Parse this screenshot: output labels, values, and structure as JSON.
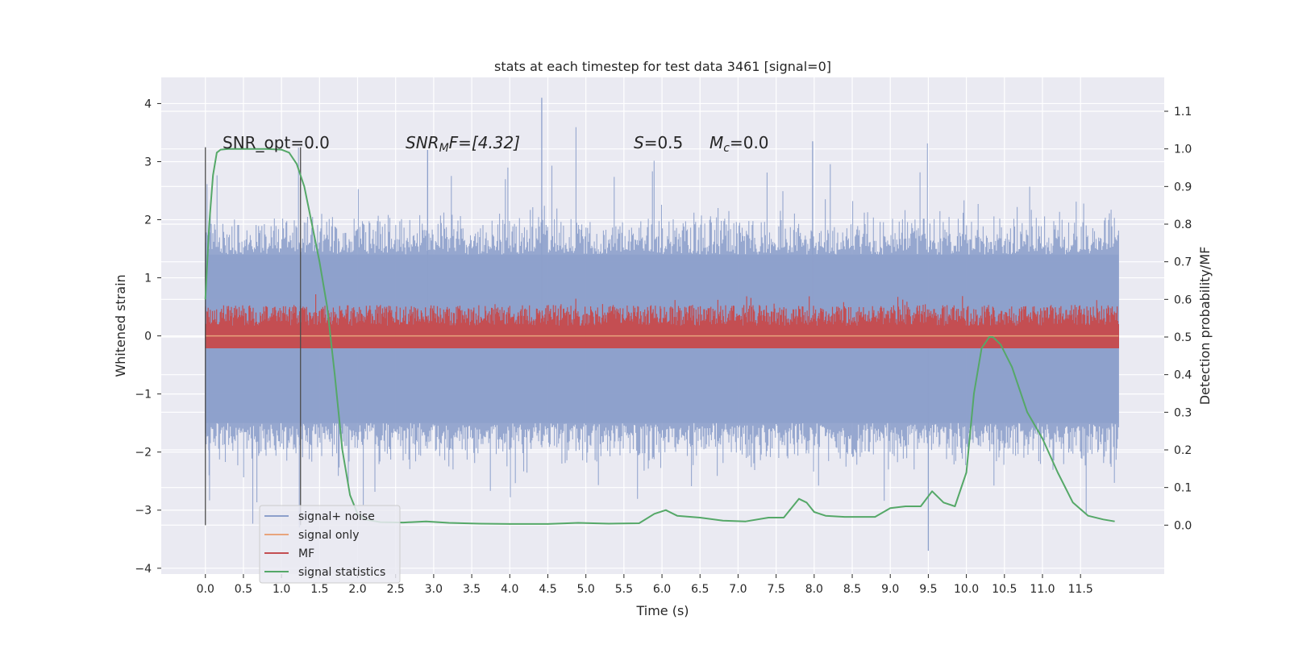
{
  "chart_data": {
    "type": "line",
    "title": "stats at each timestep for test data 3461 [signal=0]",
    "xlabel": "Time (s)",
    "ylabel_left": "Whitened strain",
    "ylabel_right": "Detection probability/MF",
    "xlim": [
      -0.58,
      12.6
    ],
    "ylim_left": [
      -4.1,
      4.45
    ],
    "ylim_right": [
      -0.13,
      1.19
    ],
    "x_ticks": [
      "0.0",
      "0.5",
      "1.0",
      "1.5",
      "2.0",
      "2.5",
      "3.0",
      "3.5",
      "4.0",
      "4.5",
      "5.0",
      "5.5",
      "6.0",
      "6.5",
      "7.0",
      "7.5",
      "8.0",
      "8.5",
      "9.0",
      "9.5",
      "10.0",
      "10.5",
      "11.0",
      "11.5"
    ],
    "y_left_ticks": [
      "−4",
      "−3",
      "−2",
      "−1",
      "0",
      "1",
      "2",
      "3",
      "4"
    ],
    "y_right_ticks": [
      "0.0",
      "0.1",
      "0.2",
      "0.3",
      "0.4",
      "0.5",
      "0.6",
      "0.7",
      "0.8",
      "0.9",
      "1.0",
      "1.1"
    ],
    "grid": true,
    "legend_placement": "lower-left",
    "annotations": {
      "snr_opt": "SNR_opt=0.0",
      "snr_mf_base": "SNR",
      "snr_mf_sub": "M",
      "snr_mf_rest": "F=[4.32]",
      "s_text": "S",
      "s_value": "=0.5",
      "mc_text": "M",
      "mc_sub": "c",
      "mc_value": "=0.0"
    },
    "vertical_markers": [
      0.0,
      1.25
    ],
    "series": [
      {
        "name": "signal+ noise",
        "color": "#8da0cb",
        "description_range": {
          "x_start": 0.0,
          "x_end": 12.0,
          "band_low": -1.5,
          "band_high": 1.4,
          "min": -3.7,
          "max": 4.1
        }
      },
      {
        "name": "signal only",
        "color": "#e8a47c",
        "x": [
          0.0,
          12.0
        ],
        "y": [
          0.0,
          0.0
        ]
      },
      {
        "name": "MF",
        "color": "#c44e52",
        "axis": "right",
        "description_range": {
          "x_start": 0.0,
          "x_end": 12.0,
          "band_low": 0.47,
          "band_high": 0.6,
          "max": 0.62
        }
      },
      {
        "name": "signal statistics",
        "color": "#55a868",
        "axis": "right",
        "x": [
          0.0,
          0.05,
          0.1,
          0.15,
          0.2,
          0.3,
          0.5,
          0.8,
          1.0,
          1.1,
          1.2,
          1.3,
          1.4,
          1.5,
          1.6,
          1.7,
          1.8,
          1.9,
          2.0,
          2.1,
          2.3,
          2.6,
          2.9,
          3.2,
          3.6,
          4.0,
          4.5,
          4.9,
          5.3,
          5.7,
          5.9,
          6.05,
          6.2,
          6.5,
          6.8,
          7.1,
          7.4,
          7.6,
          7.8,
          7.9,
          8.0,
          8.15,
          8.4,
          8.8,
          9.0,
          9.2,
          9.4,
          9.55,
          9.7,
          9.85,
          10.0,
          10.1,
          10.2,
          10.3,
          10.35,
          10.45,
          10.6,
          10.8,
          11.0,
          11.2,
          11.4,
          11.6,
          11.8,
          11.95
        ],
        "y": [
          0.6,
          0.8,
          0.93,
          0.99,
          0.998,
          1.0,
          1.0,
          1.0,
          0.998,
          0.99,
          0.96,
          0.9,
          0.8,
          0.7,
          0.58,
          0.4,
          0.2,
          0.08,
          0.03,
          0.015,
          0.008,
          0.007,
          0.01,
          0.006,
          0.004,
          0.003,
          0.003,
          0.006,
          0.004,
          0.005,
          0.03,
          0.04,
          0.025,
          0.02,
          0.012,
          0.01,
          0.02,
          0.02,
          0.07,
          0.06,
          0.035,
          0.025,
          0.022,
          0.022,
          0.045,
          0.05,
          0.05,
          0.09,
          0.06,
          0.05,
          0.14,
          0.35,
          0.47,
          0.5,
          0.5,
          0.48,
          0.42,
          0.3,
          0.23,
          0.14,
          0.06,
          0.025,
          0.015,
          0.01
        ]
      }
    ]
  }
}
